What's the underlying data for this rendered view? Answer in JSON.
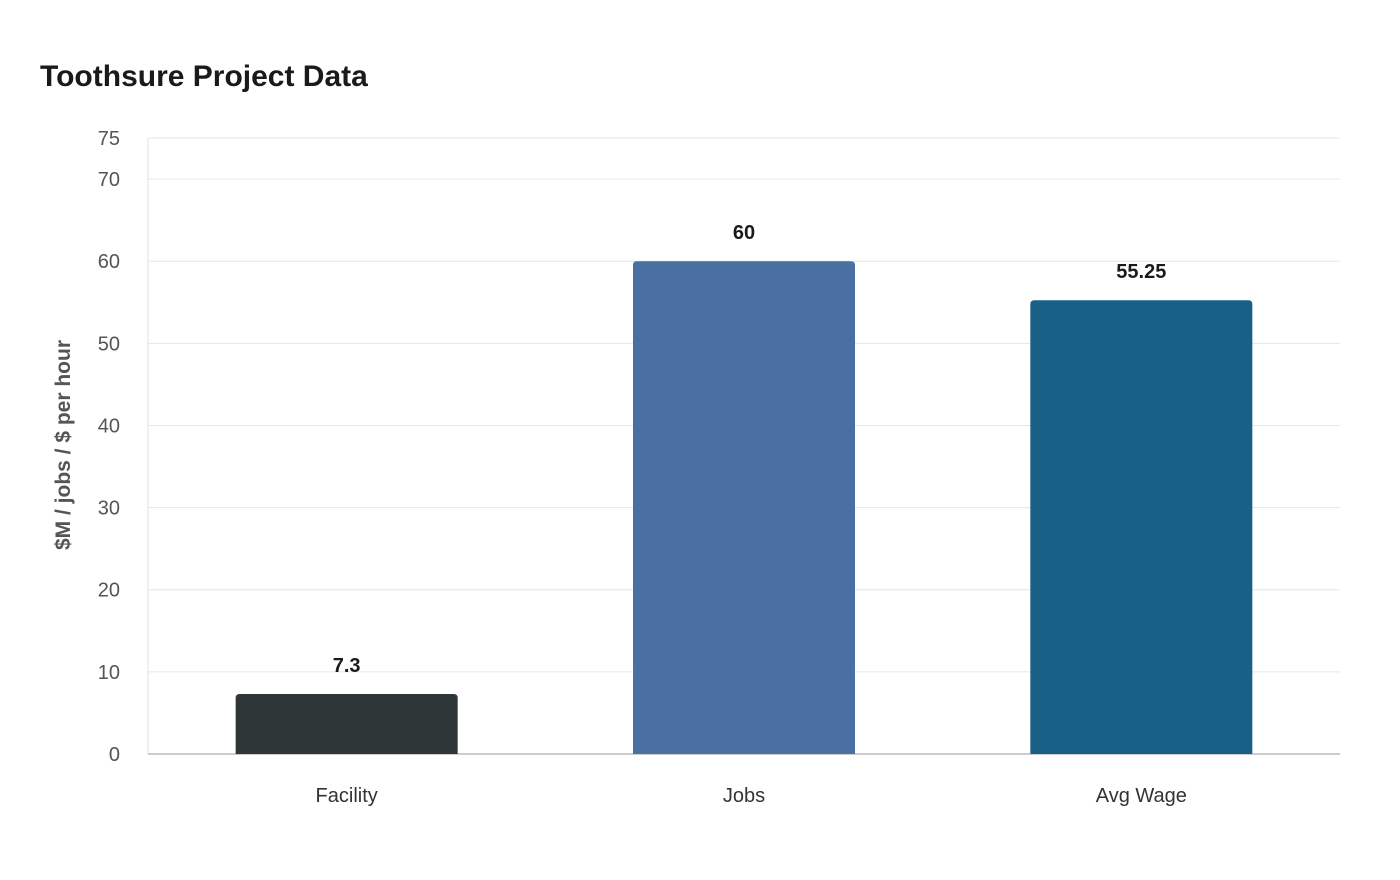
{
  "chart_data": {
    "type": "bar",
    "title": "Toothsure Project Data",
    "xlabel": "",
    "ylabel": "$M / jobs / $ per hour",
    "categories": [
      "Facility",
      "Jobs",
      "Avg Wage"
    ],
    "values": [
      7.3,
      60,
      55.25
    ],
    "value_labels": [
      "7.3",
      "60",
      "55.25"
    ],
    "colors": [
      "#2e3638",
      "#4a6fa2",
      "#186088"
    ],
    "ylim": [
      0,
      75
    ],
    "yticks": [
      0,
      10,
      20,
      30,
      40,
      50,
      60,
      70,
      75
    ],
    "grid": true,
    "legend": "none"
  }
}
